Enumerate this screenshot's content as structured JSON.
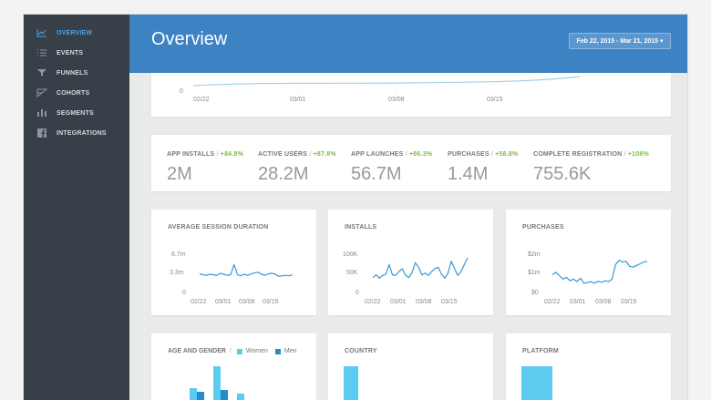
{
  "sidebar": {
    "items": [
      {
        "label": "OVERVIEW",
        "icon": "line-chart-icon",
        "active": true
      },
      {
        "label": "EVENTS",
        "icon": "list-icon",
        "active": false
      },
      {
        "label": "FUNNELS",
        "icon": "funnel-icon",
        "active": false
      },
      {
        "label": "COHORTS",
        "icon": "cohorts-icon",
        "active": false
      },
      {
        "label": "SEGMENTS",
        "icon": "segments-icon",
        "active": false
      },
      {
        "label": "INTEGRATIONS",
        "icon": "facebook-icon",
        "active": false
      }
    ]
  },
  "header": {
    "title": "Overview",
    "date_range": "Feb 22, 2015 - Mar 21, 2015 ▾"
  },
  "top_chart": {
    "y_zero": "0",
    "x_ticks": [
      "02/22",
      "03/01",
      "03/08",
      "03/15"
    ]
  },
  "kpis": [
    {
      "label": "APP INSTALLS",
      "sep": "/",
      "change": "+84.8%",
      "value": "2M"
    },
    {
      "label": "ACTIVE USERS",
      "sep": "/",
      "change": "+87.8%",
      "value": "28.2M"
    },
    {
      "label": "APP LAUNCHES",
      "sep": "/",
      "change": "+86.3%",
      "value": "56.7M"
    },
    {
      "label": "PURCHASES",
      "sep": "/",
      "change": "+58.8%",
      "value": "1.4M"
    },
    {
      "label": "COMPLETE REGISTRATION",
      "sep": "/",
      "change": "+108%",
      "value": "755.6K"
    }
  ],
  "chart_data": [
    {
      "type": "line",
      "title": "AVERAGE SESSION DURATION",
      "x_ticks": [
        "02/22",
        "03/01",
        "03/08",
        "03/15"
      ],
      "y_ticks": [
        "6.7m",
        "3.3m",
        "0"
      ],
      "ylim": [
        0,
        10
      ],
      "values": [
        4.2,
        4.0,
        3.9,
        4.1,
        4.0,
        3.9,
        4.3,
        4.1,
        3.9,
        4.0,
        6.0,
        4.0,
        3.8,
        4.1,
        3.9,
        4.2,
        4.4,
        4.5,
        4.1,
        3.9,
        4.2,
        4.3,
        4.1,
        3.7,
        3.8,
        3.9,
        3.8,
        4.0
      ]
    },
    {
      "type": "line",
      "title": "INSTALLS",
      "x_ticks": [
        "02/22",
        "03/01",
        "03/08",
        "03/15"
      ],
      "y_ticks": [
        "100K",
        "50K",
        "0"
      ],
      "ylim": [
        0,
        150
      ],
      "values": [
        52,
        60,
        50,
        58,
        62,
        90,
        60,
        58,
        70,
        78,
        58,
        52,
        66,
        96,
        82,
        60,
        65,
        58,
        70,
        78,
        82,
        62,
        50,
        65,
        100,
        78,
        58,
        70,
        90,
        110
      ]
    },
    {
      "type": "line",
      "title": "PURCHASES",
      "x_ticks": [
        "02/22",
        "03/01",
        "03/08",
        "03/15"
      ],
      "y_ticks": [
        "$2m",
        "$1m",
        "$0"
      ],
      "ylim": [
        0,
        3
      ],
      "values": [
        1.2,
        1.35,
        1.15,
        0.95,
        1.05,
        0.85,
        0.95,
        0.8,
        1.0,
        0.7,
        0.75,
        0.8,
        0.7,
        0.82,
        0.76,
        0.85,
        0.8,
        0.95,
        1.8,
        2.05,
        1.95,
        2.0,
        1.7,
        1.65,
        1.75,
        1.85,
        1.95,
        2.0
      ]
    }
  ],
  "age_gender": {
    "title": "AGE AND GENDER",
    "sep": "/",
    "series": [
      {
        "name": "Women",
        "color": "#5bcbef"
      },
      {
        "name": "Men",
        "color": "#1f8ec9"
      }
    ]
  },
  "country": {
    "title": "COUNTRY"
  },
  "platform": {
    "title": "PLATFORM"
  },
  "colors": {
    "sidebar": "#373f49",
    "header": "#3d82c3",
    "accent_active": "#4fa3e3",
    "line": "#3b96d6",
    "positive_change": "#7bbf3d"
  }
}
